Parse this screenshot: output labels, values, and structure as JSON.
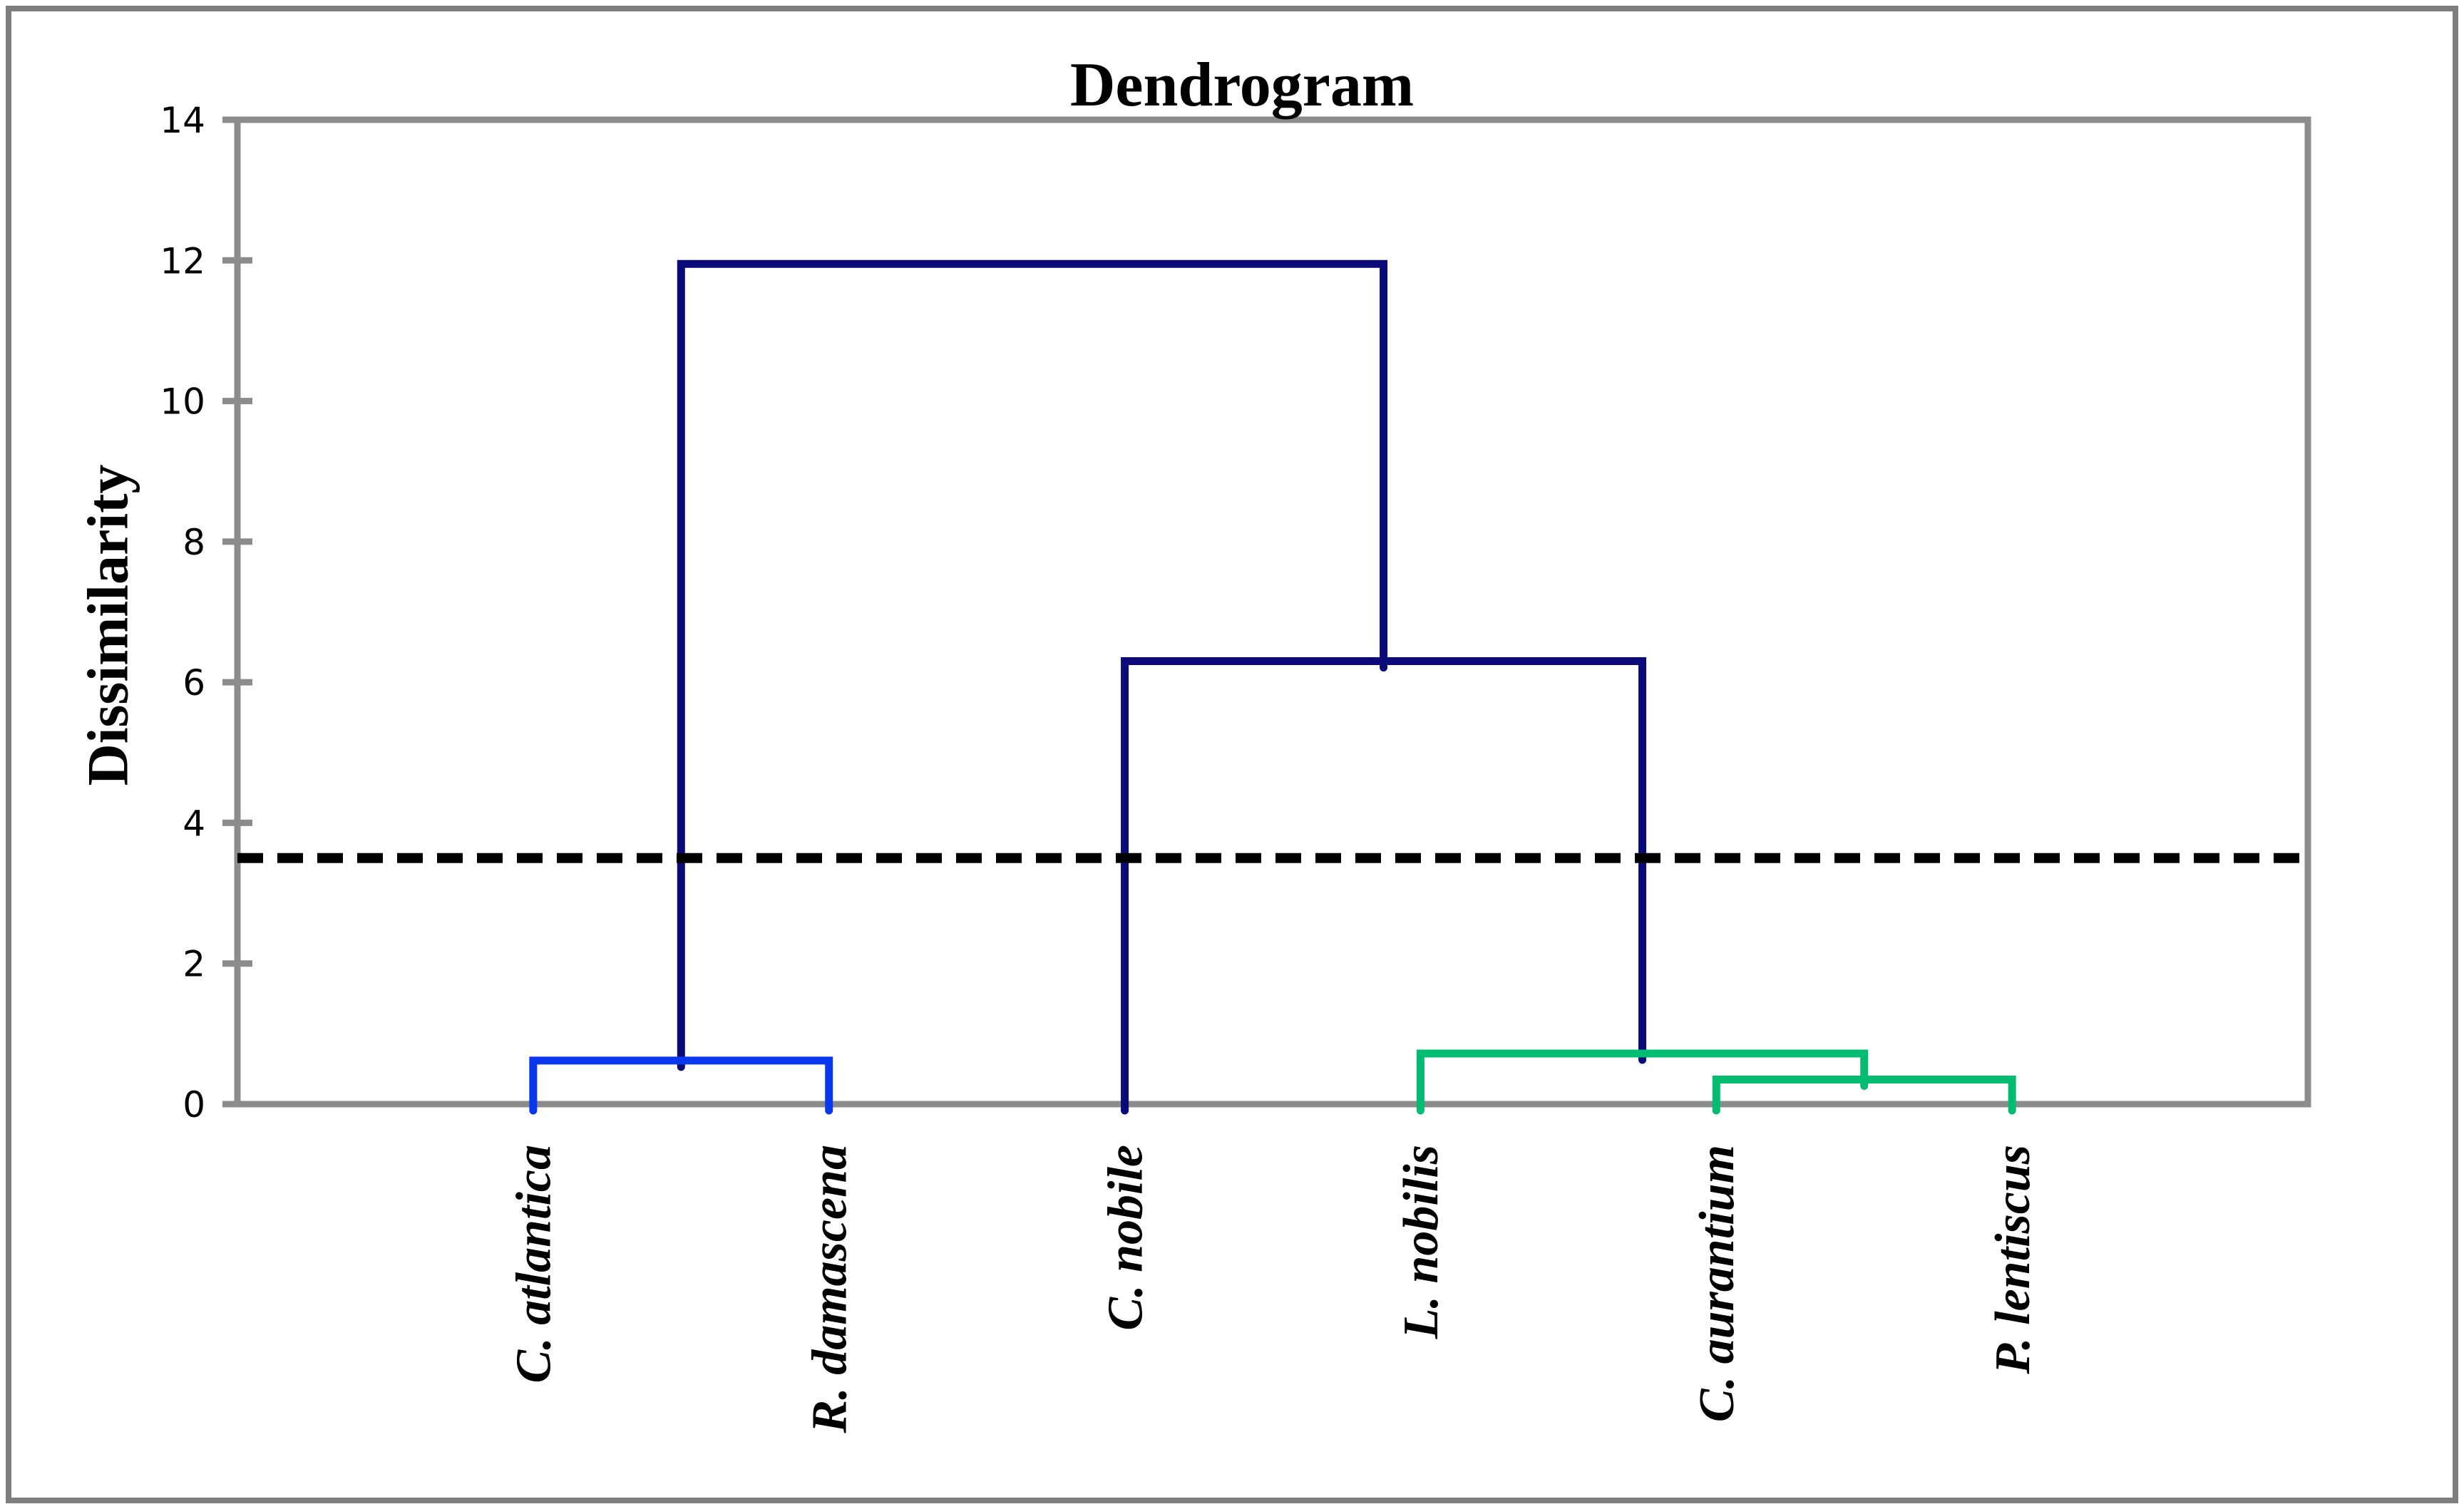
{
  "figure": {
    "background": "#ffffff",
    "outer_border_color": "#7f7f7f"
  },
  "chart_data": {
    "type": "dendrogram",
    "title": "Dendrogram",
    "ylabel": "Dissimilarity",
    "xlabel": "",
    "ylim": [
      0,
      14
    ],
    "yticks": [
      0,
      2,
      4,
      6,
      8,
      10,
      12,
      14
    ],
    "grid": "off",
    "legend": "none",
    "leaves": [
      "C. atlantica",
      "R. damascena",
      "C. nobile",
      "L. nobilis",
      "C. aurantium",
      "P. lentiscus"
    ],
    "merges": [
      {
        "a": "C. atlantica",
        "b": "R. damascena",
        "height": 0.62,
        "color": "blue"
      },
      {
        "a": "C. aurantium",
        "b": "P. lentiscus",
        "height": 0.35,
        "color": "green"
      },
      {
        "a": "L. nobilis",
        "b": "M1",
        "height": 0.72,
        "color": "green"
      },
      {
        "a": "C. nobile",
        "b": "M2",
        "height": 6.3,
        "color": "navy"
      },
      {
        "a": "M0",
        "b": "M3",
        "height": 11.95,
        "color": "navy"
      }
    ],
    "threshold": {
      "value": 3.5,
      "style": "dashed",
      "color": "#000000"
    },
    "colors": {
      "navy": "#0A0A78",
      "blue": "#0837EE",
      "green": "#02BC72",
      "axis": "#8C8C8C"
    }
  }
}
